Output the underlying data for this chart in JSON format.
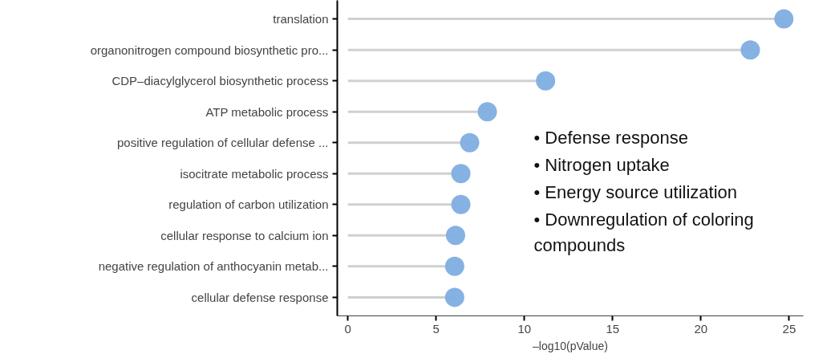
{
  "chart_data": {
    "type": "lollipop",
    "orientation": "horizontal",
    "xlabel": "–log10(pValue)",
    "categories": [
      "translation",
      "organonitrogen compound biosynthetic pro...",
      "CDP–diacylglycerol biosynthetic process",
      "ATP metabolic process",
      "positive regulation of cellular defense ...",
      "isocitrate metabolic process",
      "regulation of carbon utilization",
      "cellular response to calcium ion",
      "negative regulation of anthocyanin metab...",
      "cellular defense response"
    ],
    "values": [
      24.7,
      22.8,
      11.2,
      7.9,
      6.9,
      6.4,
      6.4,
      6.1,
      6.05,
      6.05
    ],
    "color": "#7eaee0",
    "xlim": [
      -0.6,
      25.8
    ],
    "xticks": [
      0,
      5,
      10,
      15,
      20,
      25
    ],
    "grid": false,
    "marker": "circle",
    "annotations": [
      "•   Defense response",
      "•   Nitrogen uptake",
      "•   Energy source utilization",
      "•   Downregulation of coloring\n     compounds"
    ]
  }
}
